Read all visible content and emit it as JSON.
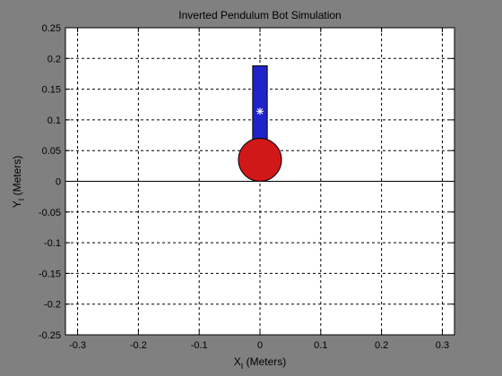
{
  "window": {
    "background": "#808080"
  },
  "plot": {
    "title": "Inverted Pendulum Bot Simulation",
    "xlabel_main": "X",
    "xlabel_sub": "I",
    "xlabel_units": " (Meters)",
    "ylabel_main": "Y",
    "ylabel_sub": "I",
    "ylabel_units": " (Meters)",
    "xlim": [
      -0.32,
      0.32
    ],
    "ylim": [
      -0.25,
      0.25
    ],
    "xticks": [
      -0.3,
      -0.2,
      -0.1,
      0,
      0.1,
      0.2,
      0.3
    ],
    "xtick_labels": [
      "-0.3",
      "-0.2",
      "-0.1",
      "0",
      "0.1",
      "0.2",
      "0.3"
    ],
    "yticks": [
      0.25,
      0.2,
      0.15,
      0.1,
      0.05,
      0,
      -0.05,
      -0.1,
      -0.15,
      -0.2,
      -0.25
    ],
    "ytick_labels": [
      "0.25",
      "0.2",
      "0.15",
      "0.1",
      "0.05",
      "0",
      "-0.05",
      "-0.1",
      "-0.15",
      "-0.2",
      "-0.25"
    ],
    "grid": true,
    "axes_background": "#ffffff"
  },
  "scene": {
    "ground_y": 0,
    "wheel": {
      "center_x": 0,
      "center_y": 0.035,
      "radius": 0.035,
      "color": "#d01818"
    },
    "body": {
      "x_min": -0.012,
      "x_max": 0.012,
      "y_min": 0.04,
      "y_max": 0.188,
      "color": "#1f24c8"
    },
    "center_of_mass": {
      "x": 0,
      "y": 0.114,
      "marker": "asterisk",
      "color": "#ffffff"
    }
  }
}
